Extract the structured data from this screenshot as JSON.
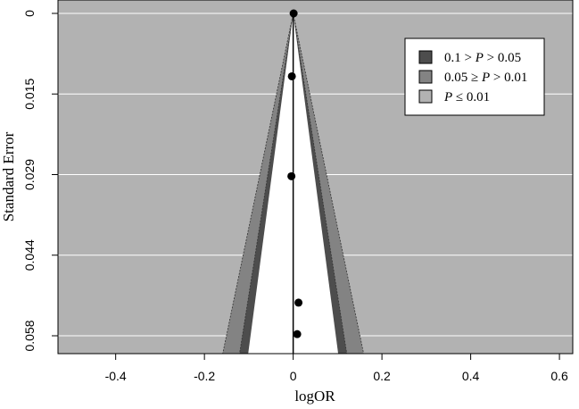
{
  "chart_data": {
    "type": "scatter",
    "subtype": "contour-enhanced funnel plot",
    "title": "",
    "xlabel": "logOR",
    "ylabel": "Standard Error",
    "xlim": [
      -0.53,
      0.63
    ],
    "ylim": [
      0,
      0.0584
    ],
    "y_reversed": true,
    "xticks": [
      -0.4,
      -0.2,
      0,
      0.2,
      0.4,
      0.6
    ],
    "xtick_labels": [
      "-0.4",
      "-0.2",
      "0",
      "0.2",
      "0.4",
      "0.6"
    ],
    "yticks": [
      0,
      0.0146,
      0.0292,
      0.0438,
      0.0584
    ],
    "ytick_labels": [
      "0",
      "0.015",
      "0.029",
      "0.044",
      "0.058"
    ],
    "grid": true,
    "reference_line_x": 0,
    "points": [
      {
        "x": 0.001,
        "y": 0.0
      },
      {
        "x": -0.003,
        "y": 0.0114
      },
      {
        "x": -0.004,
        "y": 0.0295
      },
      {
        "x": 0.012,
        "y": 0.0524
      },
      {
        "x": 0.009,
        "y": 0.0581
      }
    ],
    "contours": [
      {
        "label_parts": [
          "0.1 > ",
          "P",
          " > 0.05"
        ],
        "z_outer": 1.96,
        "z_inner": 1.645,
        "color": "#4d4d4d"
      },
      {
        "label_parts": [
          "0.05 ≥ ",
          "P",
          " > 0.01"
        ],
        "z_outer": 2.576,
        "z_inner": 1.96,
        "color": "#838383"
      },
      {
        "label_parts": [
          "",
          "P",
          " ≤ 0.01"
        ],
        "z_outer": null,
        "z_inner": 2.576,
        "color": "#b2b2b2"
      }
    ],
    "colors": {
      "background": "#b2b2b2",
      "inner_funnel": "#ffffff",
      "gridline": "#ffffff",
      "points": "#000000"
    },
    "legend_position": "top-right"
  }
}
